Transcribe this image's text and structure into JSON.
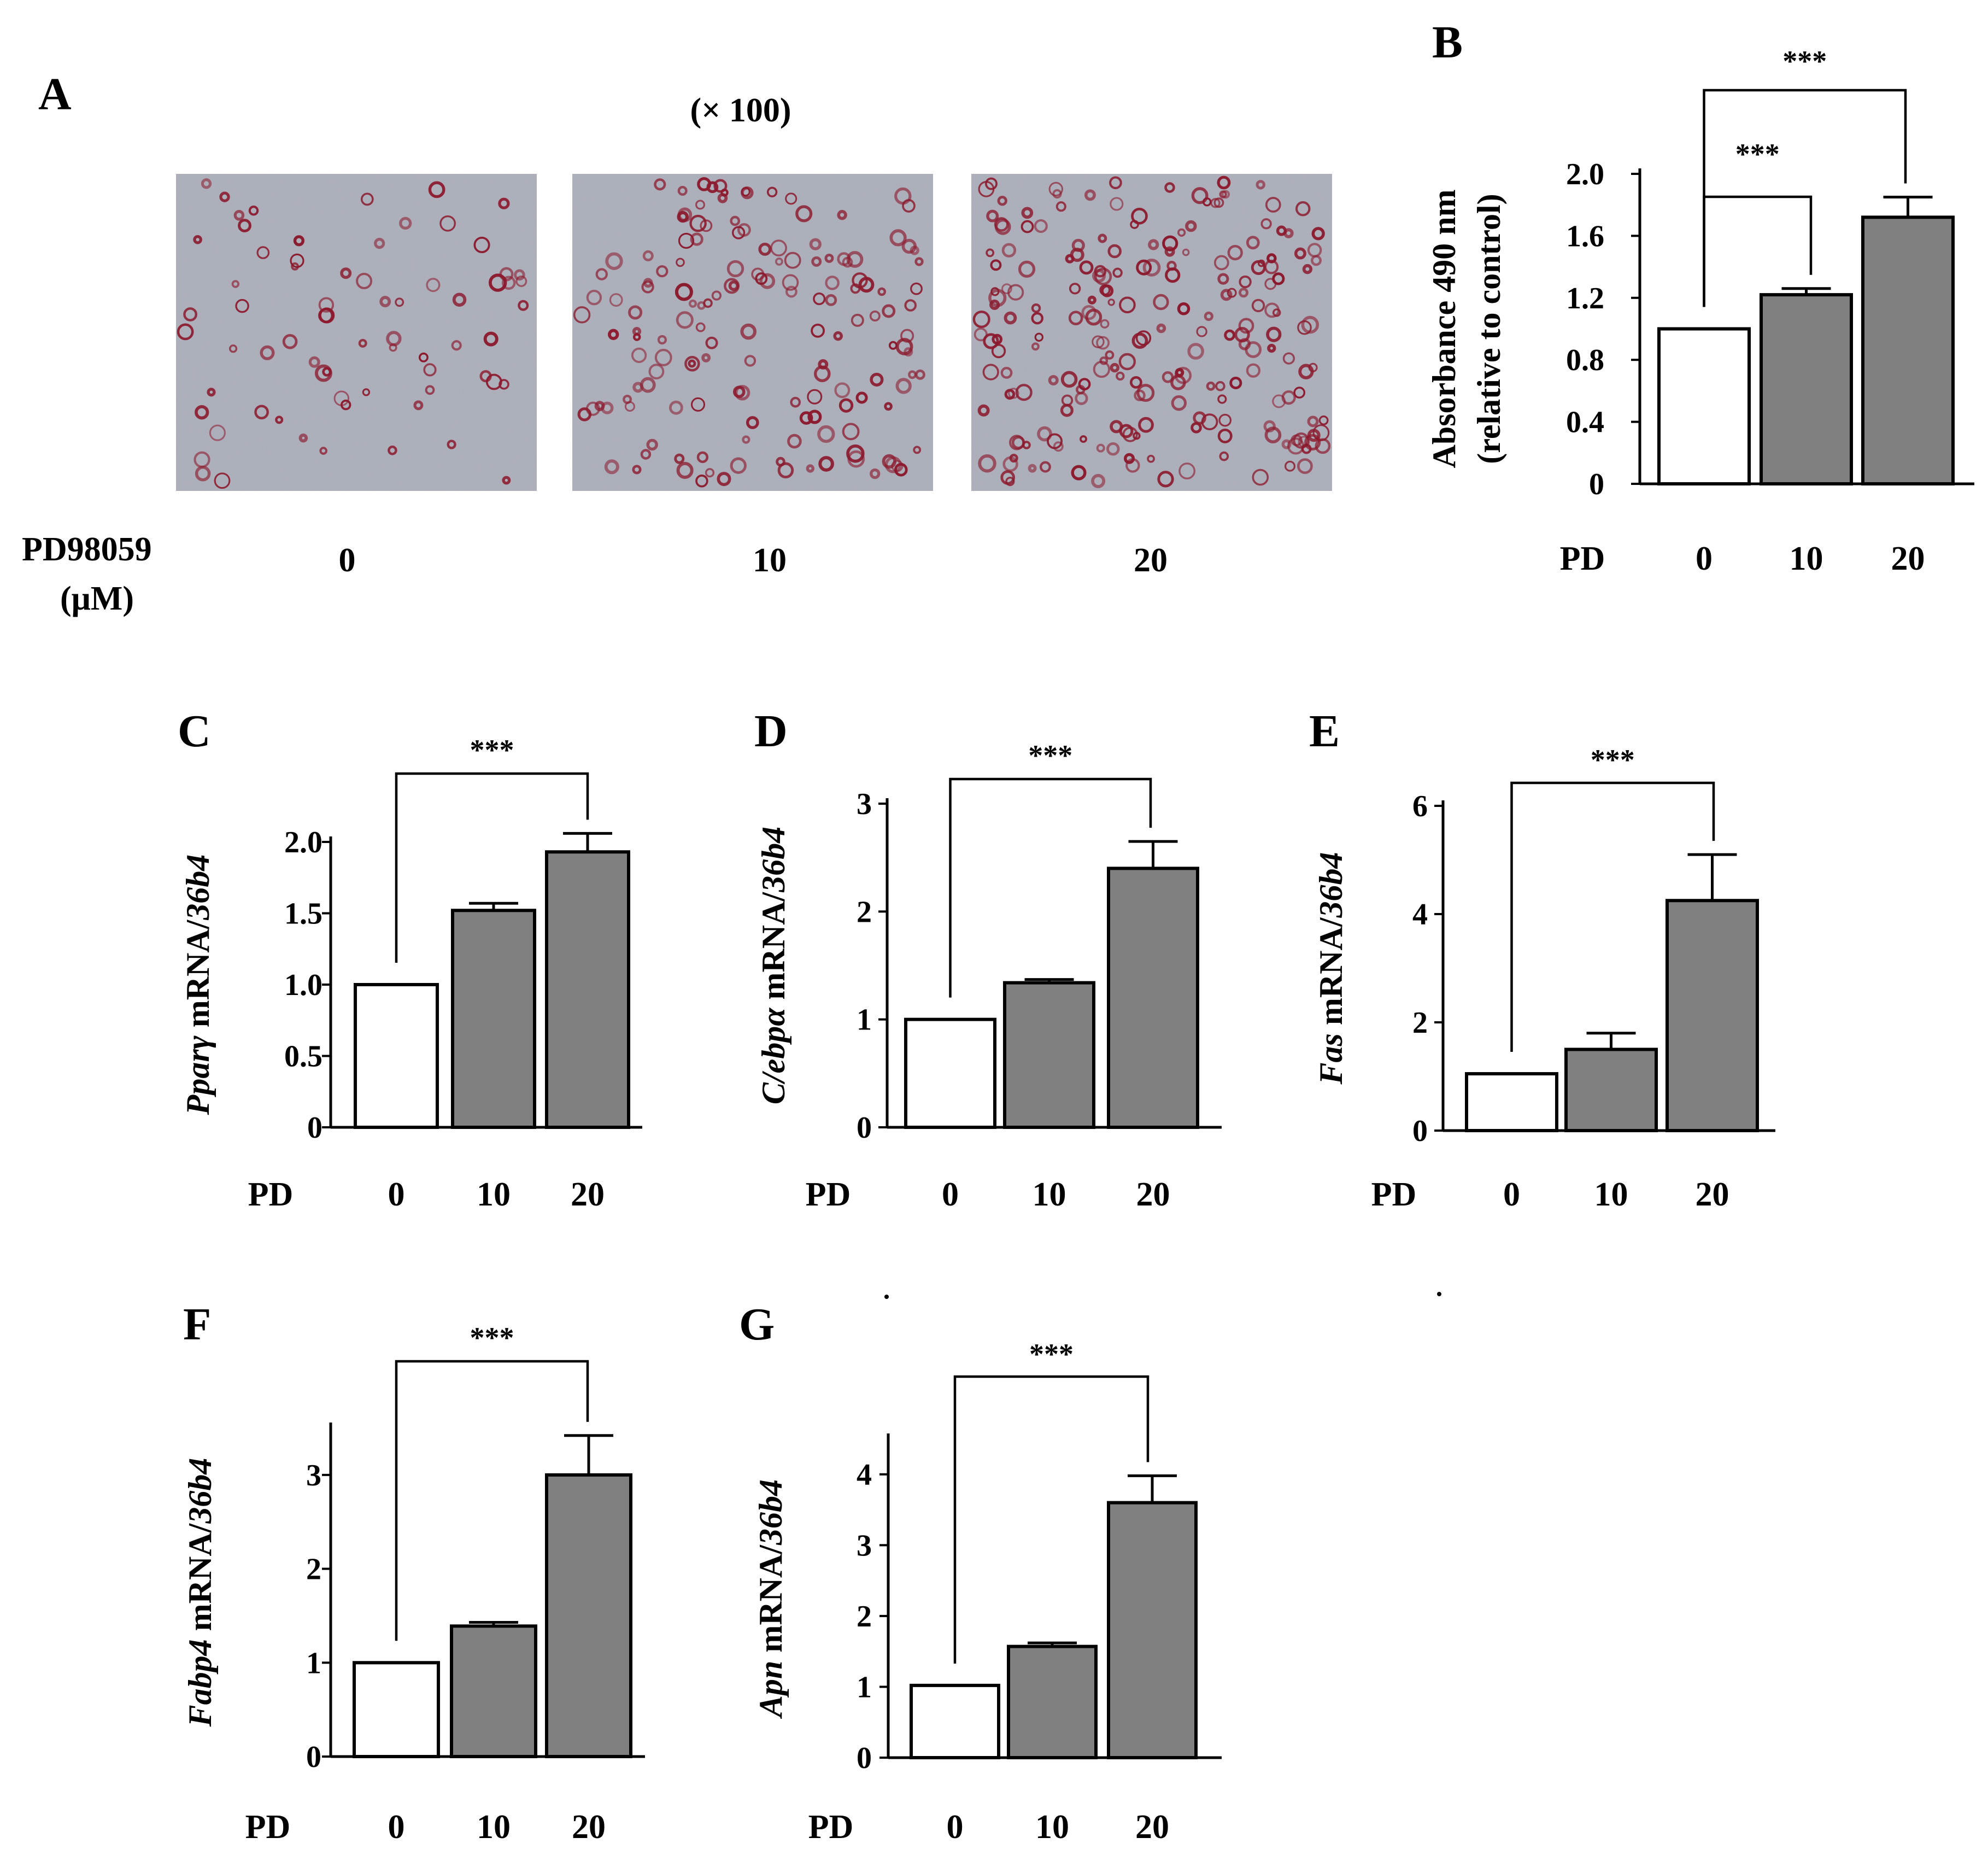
{
  "figure": {
    "magnification": "(× 100)",
    "dose_label_line1": "PD98059",
    "dose_label_line2": "(μM)",
    "dose_values": [
      "0",
      "10",
      "20"
    ],
    "micrograph_colors": {
      "background": "#a6a9b4",
      "stain": "#8c1a2e"
    }
  },
  "chart_data": [
    {
      "panel": "B",
      "type": "bar",
      "categories": [
        "0",
        "10",
        "20"
      ],
      "x_prefix": "PD",
      "values": [
        1.0,
        1.22,
        1.72
      ],
      "errors": [
        0,
        0.04,
        0.13
      ],
      "ylabel": [
        "Absorbance 490 nm",
        "(relative to control)"
      ],
      "ylim": [
        0,
        2.0
      ],
      "ticks": [
        "0",
        "0.4",
        "0.8",
        "1.2",
        "1.6",
        "2.0"
      ],
      "significance": [
        {
          "from": 0,
          "to": 1,
          "label": "***"
        },
        {
          "from": 0,
          "to": 2,
          "label": "***"
        }
      ]
    },
    {
      "panel": "C",
      "type": "bar",
      "categories": [
        "0",
        "10",
        "20"
      ],
      "x_prefix": "PD",
      "values": [
        1.0,
        1.52,
        1.93
      ],
      "errors": [
        0,
        0.05,
        0.13
      ],
      "ylabel_gene": "Pparγ",
      "ylabel_mid": " mRNA/",
      "ylabel_ref": "36b4",
      "ylim": [
        0,
        2.0
      ],
      "ticks": [
        "0",
        "0.5",
        "1.0",
        "1.5",
        "2.0"
      ],
      "significance": [
        {
          "from": 0,
          "to": 2,
          "label": "***"
        }
      ]
    },
    {
      "panel": "D",
      "type": "bar",
      "categories": [
        "0",
        "10",
        "20"
      ],
      "x_prefix": "PD",
      "values": [
        1.0,
        1.34,
        2.4
      ],
      "errors": [
        0,
        0.03,
        0.25
      ],
      "ylabel_gene": "C/ebpα",
      "ylabel_mid": " mRNA/",
      "ylabel_ref": "36b4",
      "ylim": [
        0,
        3
      ],
      "ticks": [
        "0",
        "1",
        "2",
        "3"
      ],
      "significance": [
        {
          "from": 0,
          "to": 2,
          "label": "***"
        }
      ]
    },
    {
      "panel": "E",
      "type": "bar",
      "categories": [
        "0",
        "10",
        "20"
      ],
      "x_prefix": "PD",
      "values": [
        1.05,
        1.5,
        4.25
      ],
      "errors": [
        0,
        0.3,
        0.85
      ],
      "ylabel_gene": "Fas",
      "ylabel_mid": " mRNA/",
      "ylabel_ref": "36b4",
      "ylim": [
        0,
        6
      ],
      "ticks": [
        "0",
        "2",
        "4",
        "6"
      ],
      "significance": [
        {
          "from": 0,
          "to": 2,
          "label": "***"
        }
      ]
    },
    {
      "panel": "F",
      "type": "bar",
      "categories": [
        "0",
        "10",
        "20"
      ],
      "x_prefix": "PD",
      "values": [
        1.0,
        1.39,
        3.0
      ],
      "errors": [
        0,
        0.04,
        0.42
      ],
      "ylabel_gene": "Fabp4",
      "ylabel_mid": " mRNA/",
      "ylabel_ref": "36b4",
      "ylim": [
        0,
        3.5
      ],
      "ticks": [
        "0",
        "1",
        "2",
        "3"
      ],
      "significance": [
        {
          "from": 0,
          "to": 2,
          "label": "***"
        }
      ]
    },
    {
      "panel": "G",
      "type": "bar",
      "categories": [
        "0",
        "10",
        "20"
      ],
      "x_prefix": "PD",
      "values": [
        1.02,
        1.57,
        3.6
      ],
      "errors": [
        0,
        0.05,
        0.38
      ],
      "ylabel_gene": "Apn",
      "ylabel_mid": " mRNA/",
      "ylabel_ref": "36b4",
      "ylim": [
        0,
        4.5
      ],
      "ticks": [
        "0",
        "1",
        "2",
        "3",
        "4"
      ],
      "significance": [
        {
          "from": 0,
          "to": 2,
          "label": "***"
        }
      ]
    }
  ],
  "bar_colors": [
    "#ffffff",
    "#808080",
    "#808080"
  ]
}
